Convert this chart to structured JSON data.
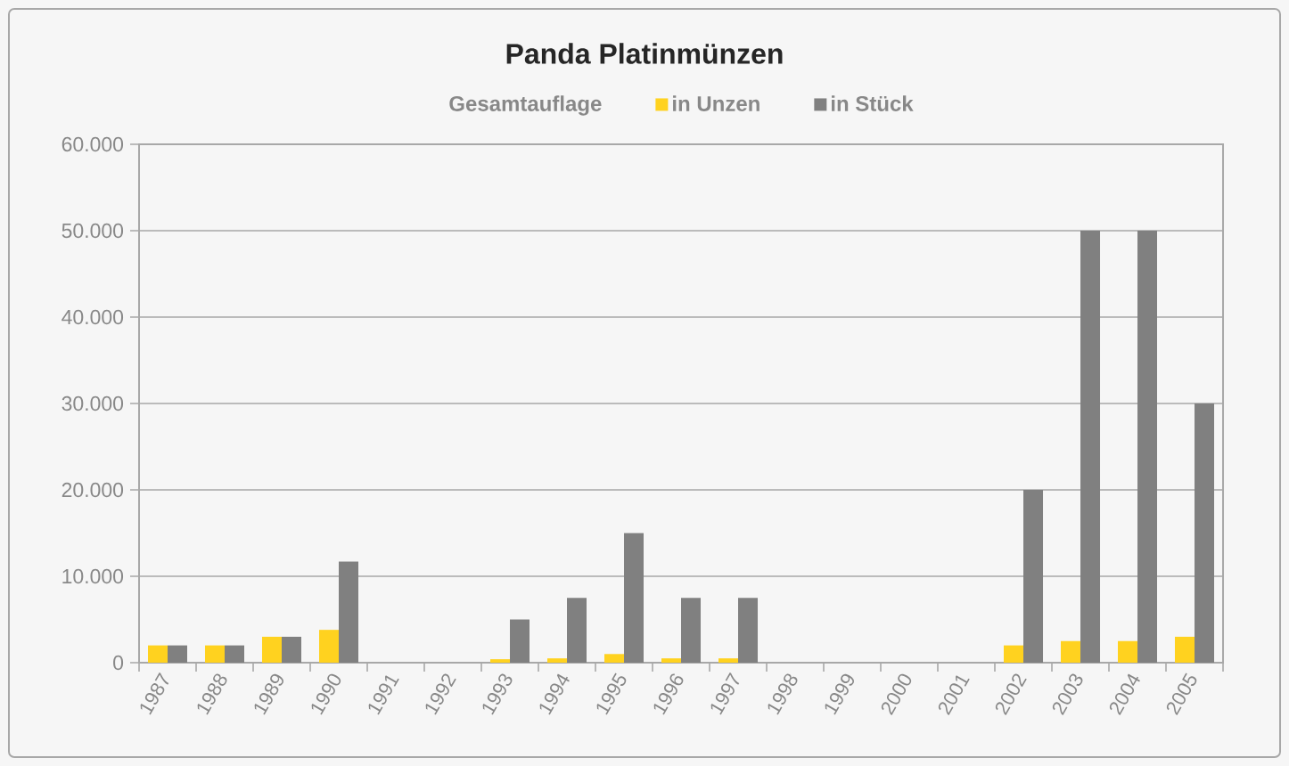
{
  "chart_data": {
    "type": "bar",
    "title": "Panda Platinmünzen",
    "legend_title": "Gesamtauflage",
    "categories": [
      "1987",
      "1988",
      "1989",
      "1990",
      "1991",
      "1992",
      "1993",
      "1994",
      "1995",
      "1996",
      "1997",
      "1998",
      "1999",
      "2000",
      "2001",
      "2002",
      "2003",
      "2004",
      "2005"
    ],
    "series": [
      {
        "name": "in Unzen",
        "color": "#ffd21f",
        "values": [
          2000,
          2000,
          3000,
          3800,
          null,
          null,
          400,
          500,
          1000,
          500,
          500,
          null,
          null,
          null,
          null,
          2000,
          2500,
          2500,
          3000
        ]
      },
      {
        "name": "in Stück",
        "color": "#808080",
        "values": [
          2000,
          2000,
          3000,
          11700,
          null,
          null,
          5000,
          7500,
          15000,
          7500,
          7500,
          null,
          null,
          null,
          null,
          20000,
          50000,
          50000,
          30000
        ]
      }
    ],
    "ylim": [
      0,
      60000
    ],
    "yticks": [
      0,
      {
        "value": 10000,
        "label": "10.000"
      },
      {
        "value": 20000,
        "label": "20.000"
      },
      {
        "value": 30000,
        "label": "30.000"
      },
      {
        "value": 40000,
        "label": "40.000"
      },
      {
        "value": 50000,
        "label": "50.000"
      },
      {
        "value": 60000,
        "label": "60.000"
      }
    ],
    "grid": "y",
    "legend": "top"
  }
}
